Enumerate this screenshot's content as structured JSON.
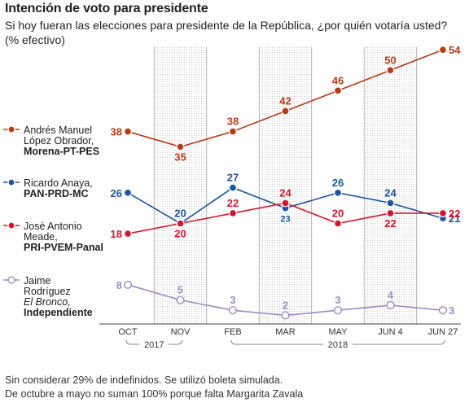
{
  "header": {
    "title": "Intención de voto para presidente",
    "subtitle": "Si hoy fueran las elecciones para presidente de la República, ¿por quién votaría usted? (% efectivo)"
  },
  "footnotes": [
    "Sin considerar 29% de indefinidos. Se utilizó boleta simulada.",
    "De octubre a mayo no suman 100% porque falta Margarita Zavala"
  ],
  "chart_data": {
    "type": "line",
    "categories": [
      "OCT",
      "NOV",
      "FEB",
      "MAR",
      "MAY",
      "JUN 4",
      "JUN 27"
    ],
    "year_groups": [
      {
        "label": "2017",
        "from": 0,
        "to": 1
      },
      {
        "label": "2018",
        "from": 2,
        "to": 6
      }
    ],
    "ylim": [
      0,
      56
    ],
    "shaded_columns": [
      1,
      3,
      5
    ],
    "grid": false,
    "legend_position": "left",
    "series": [
      {
        "key": "amlo",
        "legend": [
          "Andrés Manuel",
          "López Obrador,",
          "Morena-PT-PES"
        ],
        "legend_styles": [
          "normal",
          "normal",
          "bold"
        ],
        "color": "#b83a14",
        "values": [
          38,
          35,
          38,
          42,
          46,
          50,
          54
        ],
        "filled": true,
        "label_pos": [
          "left",
          "below",
          "above",
          "above",
          "above",
          "above",
          "right"
        ]
      },
      {
        "key": "anaya",
        "legend": [
          "Ricardo Anaya,",
          "PAN-PRD-MC"
        ],
        "legend_styles": [
          "normal",
          "bold"
        ],
        "color": "#1d55a2",
        "values": [
          26,
          20,
          27,
          23,
          26,
          24,
          21
        ],
        "filled": true,
        "label_pos": [
          "left",
          "above",
          "above",
          "below",
          "above",
          "above",
          "right"
        ]
      },
      {
        "key": "meade",
        "legend": [
          "José Antonio",
          "Meade,",
          "PRI-PVEM-Panal"
        ],
        "legend_styles": [
          "normal",
          "normal",
          "bold"
        ],
        "color": "#d6152d",
        "values": [
          18,
          20,
          22,
          24,
          20,
          22,
          22
        ],
        "filled": true,
        "label_pos": [
          "left",
          "below",
          "above",
          "above",
          "above",
          "below",
          "right"
        ]
      },
      {
        "key": "bronco",
        "legend": [
          "Jaime",
          "Rodríguez",
          "El Bronco,",
          "Independiente"
        ],
        "legend_styles": [
          "normal",
          "normal",
          "italic",
          "bold"
        ],
        "color": "#9b8cc4",
        "values": [
          8,
          5,
          3,
          2,
          3,
          4,
          3
        ],
        "filled": false,
        "label_pos": [
          "left",
          "above",
          "above",
          "above",
          "above",
          "above",
          "right"
        ]
      }
    ]
  }
}
